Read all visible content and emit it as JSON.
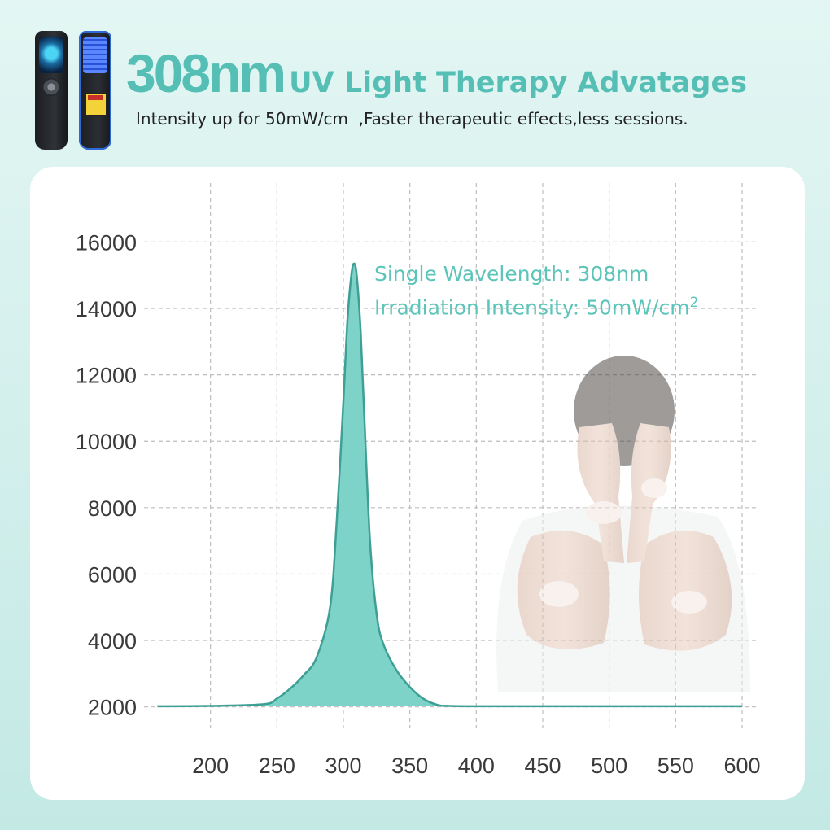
{
  "header": {
    "title_big": "308nm",
    "title_rest": "UV Light Therapy Advatages",
    "subtitle": "Intensity up for 50mW/cm  ,Faster therapeutic effects,less sessions."
  },
  "annotation": {
    "line1": "Single Wavelength:  308nm",
    "line2_text": "Irradiation Intensity: 50mW/cm",
    "line2_sup": "2"
  },
  "colors": {
    "accent": "#56bfb5",
    "fill": "#7dd3c8",
    "stroke": "#3e9f95",
    "grid": "#bdbdbd"
  },
  "chart_data": {
    "type": "area",
    "x": [
      160,
      200,
      240,
      250,
      260,
      270,
      280,
      290,
      295,
      300,
      303,
      306,
      308,
      310,
      313,
      316,
      320,
      325,
      330,
      340,
      350,
      360,
      370,
      380,
      420,
      600
    ],
    "y": [
      2020,
      2030,
      2080,
      2250,
      2550,
      2950,
      3500,
      5000,
      7600,
      11200,
      13600,
      15000,
      15350,
      15000,
      13300,
      10500,
      7000,
      4800,
      3900,
      3100,
      2600,
      2250,
      2070,
      2030,
      2020,
      2020
    ],
    "xticks": [
      "200",
      "250",
      "300",
      "350",
      "400",
      "450",
      "500",
      "550",
      "600"
    ],
    "yticks": [
      "2000",
      "4000",
      "6000",
      "8000",
      "10000",
      "12000",
      "14000",
      "16000"
    ],
    "xlim": [
      150,
      600
    ],
    "ylim": [
      1600,
      17700
    ],
    "grid": true,
    "title": "",
    "xlabel": "",
    "ylabel": ""
  }
}
